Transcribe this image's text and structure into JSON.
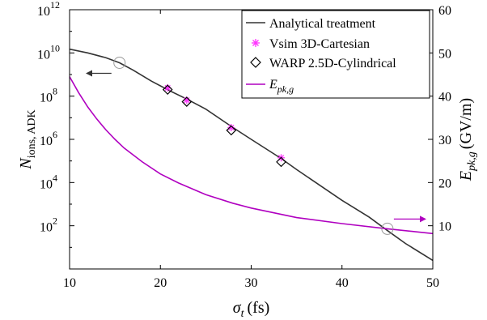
{
  "chart_data": {
    "type": "line",
    "xlabel": "σ",
    "xlabel_sub": "t",
    "xlabel_unit": "(fs)",
    "ylabel_left": "N",
    "ylabel_left_sub": "ions, ADK",
    "ylabel_right": "E",
    "ylabel_right_sub": "pk,g",
    "ylabel_right_unit": "(GV/m)",
    "xlim": [
      10,
      50
    ],
    "ylim_left": [
      1,
      1000000000000.0
    ],
    "ylim_left_scale": "log",
    "ylim_right": [
      0,
      60
    ],
    "x_ticks": [
      "10",
      "20",
      "30",
      "40",
      "50"
    ],
    "y_left_ticks": [
      {
        "base": "10",
        "exp": "2"
      },
      {
        "base": "10",
        "exp": "4"
      },
      {
        "base": "10",
        "exp": "6"
      },
      {
        "base": "10",
        "exp": "8"
      },
      {
        "base": "10",
        "exp": "10"
      },
      {
        "base": "10",
        "exp": "12"
      }
    ],
    "y_right_ticks": [
      "10",
      "20",
      "30",
      "40",
      "50",
      "60"
    ],
    "legend": {
      "placement": "top-right",
      "entries": [
        {
          "label": "Analytical treatment",
          "marker": "line",
          "color": "#333333"
        },
        {
          "label": "Vsim 3D-Cartesian",
          "marker": "asterisk",
          "color": "#ff33ff"
        },
        {
          "label": "WARP 2.5D-Cylindrical",
          "marker": "diamond",
          "color": "#000000"
        },
        {
          "label": "E",
          "label_sub": "pk,g",
          "marker": "line",
          "color": "#b000c0"
        }
      ]
    },
    "series": [
      {
        "axis": "left",
        "color": "#333333",
        "style": "line",
        "points": [
          [
            10,
            15000000000.0
          ],
          [
            12,
            10000000000.0
          ],
          [
            14,
            6000000000.0
          ],
          [
            15.5,
            3500000000.0
          ],
          [
            17,
            1600000000.0
          ],
          [
            19,
            500000000.0
          ],
          [
            21,
            180000000.0
          ],
          [
            23,
            70000000.0
          ],
          [
            25,
            25000000.0
          ],
          [
            28,
            3500000.0
          ],
          [
            30,
            1000000.0
          ],
          [
            33.3,
            130000.0
          ],
          [
            35,
            40000.0
          ],
          [
            40,
            1500.0
          ],
          [
            43,
            250.0
          ],
          [
            45,
            60.0
          ],
          [
            47,
            15.0
          ],
          [
            50,
            2.5
          ]
        ]
      },
      {
        "axis": "left",
        "color": "#ff33ff",
        "style": "asterisk",
        "points": [
          [
            20.8,
            240000000.0
          ],
          [
            22.9,
            65000000.0
          ],
          [
            27.8,
            3500000.0
          ],
          [
            33.3,
            140000.0
          ]
        ]
      },
      {
        "axis": "left",
        "color": "#000000",
        "style": "diamond",
        "points": [
          [
            20.8,
            200000000.0
          ],
          [
            22.9,
            55000000.0
          ],
          [
            27.8,
            2600000.0
          ],
          [
            33.3,
            90000.0
          ]
        ]
      },
      {
        "axis": "right",
        "color": "#b000c0",
        "style": "line",
        "points": [
          [
            10,
            44.5
          ],
          [
            11,
            40.8
          ],
          [
            12,
            37.5
          ],
          [
            13,
            34.7
          ],
          [
            14,
            32.2
          ],
          [
            15,
            30.0
          ],
          [
            16,
            28.0
          ],
          [
            18,
            24.8
          ],
          [
            20,
            22.0
          ],
          [
            22,
            19.9
          ],
          [
            25,
            17.2
          ],
          [
            28,
            15.2
          ],
          [
            30,
            14.1
          ],
          [
            35,
            11.9
          ],
          [
            40,
            10.5
          ],
          [
            45,
            9.3
          ],
          [
            50,
            8.2
          ]
        ]
      }
    ],
    "annotations": [
      {
        "type": "ellipse-arrow",
        "at": [
          15.5,
          3500000000.0
        ],
        "axis": "left",
        "direction": "left"
      },
      {
        "type": "ellipse-arrow",
        "at": [
          45,
          9.3
        ],
        "axis": "right",
        "direction": "right"
      }
    ]
  }
}
